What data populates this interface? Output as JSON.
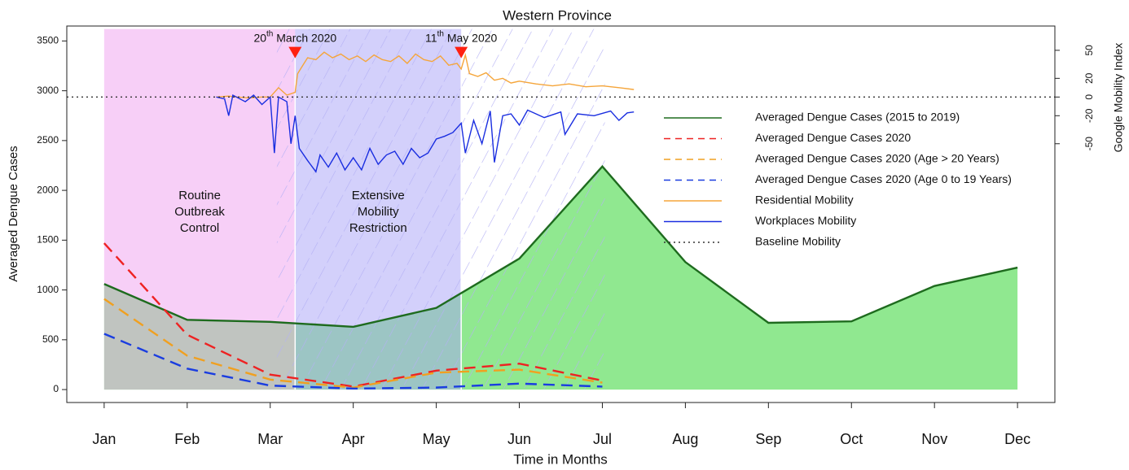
{
  "chart_data": {
    "type": "line",
    "title": "Western Province",
    "x_label": "Time in Months",
    "y_label": "Averaged Dengue Cases",
    "y2_label": "Google Mobility Index",
    "x": [
      1,
      2,
      3,
      4,
      5,
      6,
      7,
      8,
      9,
      10,
      11,
      12
    ],
    "xlim": [
      0.55,
      12.45
    ],
    "xticks": [
      {
        "value": 1,
        "label": "Jan"
      },
      {
        "value": 2,
        "label": "Feb"
      },
      {
        "value": 3,
        "label": "Mar"
      },
      {
        "value": 4,
        "label": "Apr"
      },
      {
        "value": 5,
        "label": "May"
      },
      {
        "value": 6,
        "label": "Jun"
      },
      {
        "value": 7,
        "label": "Jul"
      },
      {
        "value": 8,
        "label": "Aug"
      },
      {
        "value": 9,
        "label": "Sep"
      },
      {
        "value": 10,
        "label": "Oct"
      },
      {
        "value": 11,
        "label": "Nov"
      },
      {
        "value": 12,
        "label": "Dec"
      }
    ],
    "ylim": [
      -130,
      3650
    ],
    "yticks": [
      0,
      500,
      1000,
      1500,
      2000,
      2500,
      3000,
      3500
    ],
    "y2lim": [
      -327,
      76
    ],
    "y2ticks": [
      50,
      20,
      0,
      -20,
      -50
    ],
    "regions": [
      {
        "label": [
          "Routine",
          "Outbreak",
          "Control"
        ],
        "x": [
          1,
          3.3
        ],
        "top": 3620,
        "color": "#f0a0f0",
        "opacity": 0.5
      },
      {
        "label": [
          "Extensive",
          "Mobility",
          "Restriction"
        ],
        "x": [
          3.3,
          5.3
        ],
        "top": 3620,
        "color": "#a8a2f8",
        "opacity": 0.5
      },
      {
        "x": [
          3.08,
          7.03
        ],
        "top": 3620,
        "color": "#b4b0f4",
        "hatch": true
      }
    ],
    "markers": [
      {
        "label": [
          "20",
          "th",
          " March 2020"
        ],
        "x": 3.3,
        "y": 3384,
        "color": "#ff2010"
      },
      {
        "label": [
          "11",
          "th",
          " May 2020"
        ],
        "x": 5.3,
        "y": 3384,
        "color": "#ff2010"
      }
    ],
    "series": [
      {
        "name": "Averaged Dengue Cases (2015 to 2019)",
        "color": "#1e6b1e",
        "dash": "solid",
        "fill": "#90e890",
        "values": [
          1060,
          700,
          680,
          630,
          820,
          1315,
          2240,
          1280,
          670,
          685,
          1040,
          1225
        ]
      },
      {
        "name": "Averaged Dengue Cases 2020",
        "color": "#ee2222",
        "dash": "dashed",
        "values": [
          1470,
          550,
          150,
          30,
          190,
          260,
          90,
          null,
          null,
          null,
          null,
          null
        ]
      },
      {
        "name": "Averaged Dengue Cases 2020 (Age > 20 Years)",
        "color": "#f0a020",
        "dash": "dashed",
        "values": [
          910,
          340,
          100,
          20,
          170,
          200,
          70,
          null,
          null,
          null,
          null,
          null
        ]
      },
      {
        "name": "Averaged Dengue Cases 2020 (Age 0 to 19 Years)",
        "color": "#1a3de0",
        "dash": "dashed",
        "values": [
          560,
          210,
          40,
          10,
          20,
          60,
          30,
          null,
          null,
          null,
          null,
          null
        ]
      },
      {
        "name": "Residential Mobility",
        "color": "#f5a53a",
        "dash": "solid",
        "axis": "y2",
        "x": [
          2.35,
          2.5,
          2.6,
          2.75,
          2.9,
          3.0,
          3.1,
          3.2,
          3.3,
          3.33,
          3.4,
          3.45,
          3.55,
          3.65,
          3.75,
          3.85,
          3.95,
          4.05,
          4.15,
          4.25,
          4.35,
          4.45,
          4.55,
          4.65,
          4.75,
          4.85,
          4.95,
          5.05,
          5.15,
          5.25,
          5.3,
          5.35,
          5.4,
          5.5,
          5.6,
          5.7,
          5.8,
          5.9,
          6.0,
          6.2,
          6.4,
          6.6,
          6.8,
          7.0,
          7.2,
          7.38
        ],
        "values": [
          0,
          1,
          0,
          -1,
          0,
          0,
          10,
          2,
          5,
          25,
          35,
          42,
          40,
          48,
          42,
          46,
          40,
          44,
          38,
          45,
          40,
          38,
          44,
          36,
          46,
          40,
          38,
          44,
          34,
          36,
          30,
          45,
          25,
          22,
          26,
          18,
          20,
          15,
          17,
          14,
          12,
          14,
          11,
          12,
          10,
          8
        ]
      },
      {
        "name": "Workplaces Mobility",
        "color": "#1a2ee0",
        "dash": "solid",
        "axis": "y2",
        "x": [
          2.35,
          2.45,
          2.5,
          2.55,
          2.7,
          2.8,
          2.9,
          3.0,
          3.05,
          3.1,
          3.2,
          3.25,
          3.3,
          3.35,
          3.45,
          3.55,
          3.6,
          3.7,
          3.8,
          3.9,
          4.0,
          4.1,
          4.2,
          4.3,
          4.4,
          4.5,
          4.6,
          4.7,
          4.8,
          4.9,
          5.0,
          5.1,
          5.2,
          5.3,
          5.35,
          5.45,
          5.55,
          5.65,
          5.7,
          5.8,
          5.9,
          6.0,
          6.1,
          6.3,
          6.5,
          6.55,
          6.7,
          6.9,
          7.1,
          7.2,
          7.3,
          7.38
        ],
        "values": [
          0,
          -2,
          -20,
          2,
          -5,
          2,
          -8,
          0,
          -60,
          0,
          -5,
          -50,
          -20,
          -55,
          -68,
          -80,
          -62,
          -75,
          -60,
          -78,
          -65,
          -78,
          -55,
          -72,
          -62,
          -58,
          -72,
          -55,
          -65,
          -60,
          -45,
          -42,
          -38,
          -28,
          -60,
          -25,
          -50,
          -15,
          -70,
          -20,
          -18,
          -30,
          -14,
          -22,
          -16,
          -40,
          -18,
          -20,
          -15,
          -25,
          -17,
          -16
        ]
      },
      {
        "name": "Baseline Mobility",
        "color": "#333333",
        "dash": "dotted",
        "axis": "y2",
        "value": 0
      }
    ]
  }
}
